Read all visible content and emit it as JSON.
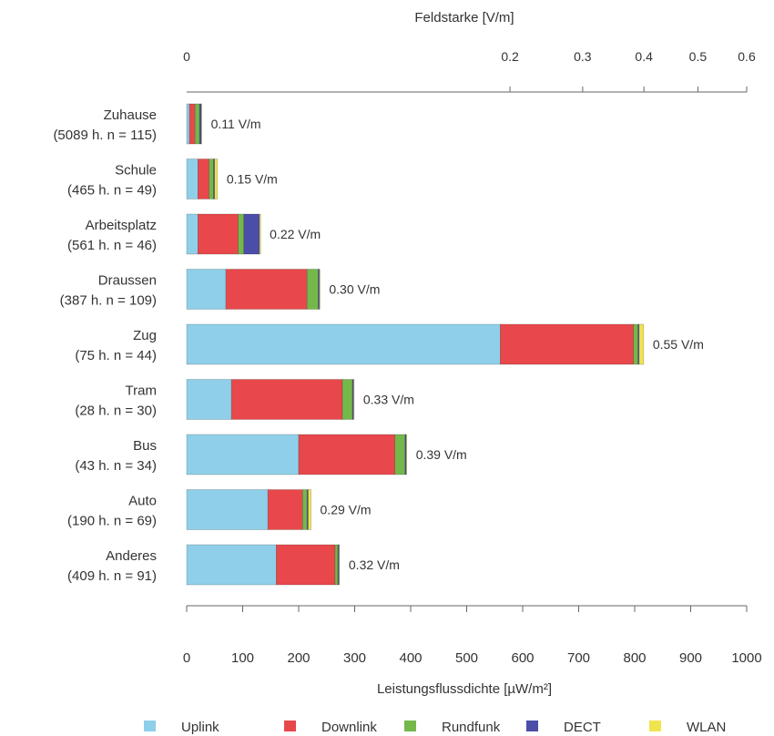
{
  "chart_data": {
    "type": "bar",
    "stacked": true,
    "orientation": "horizontal",
    "top_axis_label": "Feldstarke [V/m]",
    "top_ticks": [
      0,
      0.2,
      0.3,
      0.4,
      0.5,
      0.6
    ],
    "top_tick_labels": [
      "0",
      "0.2",
      "0.3",
      "0.4",
      "0.5",
      "0.6"
    ],
    "xlabel": "Leistungsflussdichte [µW/m²]",
    "xlim": [
      0,
      1000
    ],
    "x_ticks": [
      0,
      100,
      200,
      300,
      400,
      500,
      600,
      700,
      800,
      900,
      1000
    ],
    "x_tick_labels": [
      "0",
      "100",
      "200",
      "300",
      "400",
      "500",
      "600",
      "700",
      "800",
      "900",
      "1000"
    ],
    "legend_position": "bottom",
    "categories": [
      {
        "name": "Zuhause",
        "info": "(5089 h. n = 115)"
      },
      {
        "name": "Schule",
        "info": "(465 h. n = 49)"
      },
      {
        "name": "Arbeitsplatz",
        "info": "(561 h. n = 46)"
      },
      {
        "name": "Draussen",
        "info": "(387 h. n = 109)"
      },
      {
        "name": "Zug",
        "info": "(75 h. n = 44)"
      },
      {
        "name": "Tram",
        "info": "(28 h. n = 30)"
      },
      {
        "name": "Bus",
        "info": "(43 h. n = 34)"
      },
      {
        "name": "Auto",
        "info": "(190 h. n = 69)"
      },
      {
        "name": "Anderes",
        "info": "(409 h. n = 91)"
      }
    ],
    "series": [
      {
        "name": "Uplink",
        "color": "#8fcfe9",
        "values": [
          5,
          20,
          20,
          70,
          560,
          80,
          200,
          145,
          160
        ]
      },
      {
        "name": "Downlink",
        "color": "#e8484b",
        "values": [
          10,
          20,
          72,
          145,
          238,
          198,
          172,
          62,
          105
        ]
      },
      {
        "name": "Rundfunk",
        "color": "#74b84b",
        "values": [
          8,
          8,
          10,
          20,
          8,
          18,
          18,
          8,
          5
        ]
      },
      {
        "name": "DECT",
        "color": "#4a4ea8",
        "values": [
          3,
          2,
          28,
          2,
          2,
          2,
          2,
          2,
          2
        ]
      },
      {
        "name": "WLAN",
        "color": "#f0e44e",
        "values": [
          1,
          5,
          2,
          1,
          8,
          1,
          1,
          5,
          1
        ]
      }
    ],
    "value_labels": [
      "0.11 V/m",
      "0.15 V/m",
      "0.22 V/m",
      "0.30 V/m",
      "0.55 V/m",
      "0.33 V/m",
      "0.39 V/m",
      "0.29 V/m",
      "0.32 V/m"
    ]
  }
}
